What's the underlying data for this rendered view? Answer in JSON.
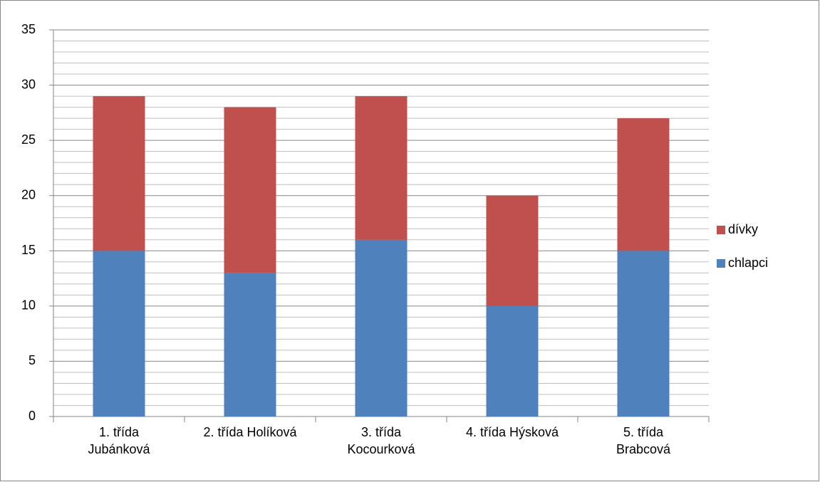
{
  "chart_data": {
    "type": "stacked_bar",
    "categories": [
      "1. třída Jubánková",
      "2. třída Holíková",
      "3. třída Kocourková",
      "4. třída Hýsková",
      "5. třída Brabcová"
    ],
    "series": [
      {
        "name": "chlapci",
        "color": "#4f81bd",
        "values": [
          15,
          13,
          16,
          10,
          15
        ]
      },
      {
        "name": "dívky",
        "color": "#c0504d",
        "values": [
          14,
          15,
          13,
          10,
          12
        ]
      }
    ],
    "ylim": [
      0,
      35
    ],
    "yticks": [
      0,
      5,
      10,
      15,
      20,
      25,
      30,
      35
    ],
    "grid": true,
    "minor_grid": true,
    "legend": "right"
  }
}
